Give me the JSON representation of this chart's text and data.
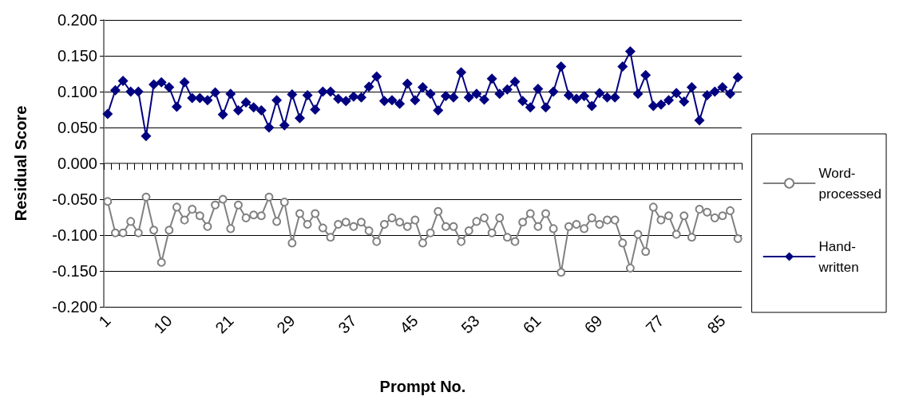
{
  "chart_data": {
    "type": "line",
    "xlabel": "Prompt No.",
    "ylabel": "Residual Score",
    "categories": [
      "1",
      null,
      null,
      null,
      null,
      null,
      null,
      null,
      "10",
      null,
      null,
      null,
      null,
      null,
      null,
      null,
      "21",
      null,
      null,
      null,
      null,
      null,
      null,
      null,
      "29",
      null,
      null,
      null,
      null,
      null,
      null,
      null,
      "37",
      null,
      null,
      null,
      null,
      null,
      null,
      null,
      "45",
      null,
      null,
      null,
      null,
      null,
      null,
      null,
      "53",
      null,
      null,
      null,
      null,
      null,
      null,
      null,
      "61",
      null,
      null,
      null,
      null,
      null,
      null,
      null,
      "69",
      null,
      null,
      null,
      null,
      null,
      null,
      null,
      "77",
      null,
      null,
      null,
      null,
      null,
      null,
      null,
      "85",
      null,
      null
    ],
    "series": [
      {
        "name": "Word-processed",
        "color": "#808080",
        "marker": "circle",
        "values": [
          -0.053,
          -0.097,
          -0.097,
          -0.081,
          -0.097,
          -0.047,
          -0.093,
          -0.138,
          -0.093,
          -0.061,
          -0.079,
          -0.064,
          -0.073,
          -0.088,
          -0.058,
          -0.05,
          -0.091,
          -0.058,
          -0.076,
          -0.072,
          -0.073,
          -0.047,
          -0.081,
          -0.054,
          -0.111,
          -0.07,
          -0.085,
          -0.07,
          -0.09,
          -0.103,
          -0.085,
          -0.082,
          -0.088,
          -0.082,
          -0.094,
          -0.109,
          -0.085,
          -0.076,
          -0.082,
          -0.088,
          -0.079,
          -0.111,
          -0.097,
          -0.067,
          -0.088,
          -0.088,
          -0.109,
          -0.094,
          -0.081,
          -0.076,
          -0.097,
          -0.076,
          -0.103,
          -0.109,
          -0.082,
          -0.07,
          -0.088,
          -0.07,
          -0.091,
          -0.152,
          -0.088,
          -0.085,
          -0.091,
          -0.076,
          -0.085,
          -0.079,
          -0.079,
          -0.111,
          -0.146,
          -0.099,
          -0.123,
          -0.061,
          -0.079,
          -0.073,
          -0.099,
          -0.073,
          -0.103,
          -0.064,
          -0.068,
          -0.076,
          -0.073,
          -0.066,
          -0.105
        ]
      },
      {
        "name": "Hand-written",
        "color": "#000080",
        "marker": "diamond",
        "values": [
          0.069,
          0.102,
          0.115,
          0.1,
          0.1,
          0.038,
          0.11,
          0.113,
          0.106,
          0.079,
          0.113,
          0.091,
          0.091,
          0.088,
          0.099,
          0.068,
          0.097,
          0.074,
          0.085,
          0.078,
          0.074,
          0.05,
          0.088,
          0.053,
          0.096,
          0.063,
          0.095,
          0.075,
          0.1,
          0.1,
          0.09,
          0.087,
          0.093,
          0.092,
          0.107,
          0.121,
          0.087,
          0.088,
          0.083,
          0.111,
          0.088,
          0.106,
          0.097,
          0.074,
          0.094,
          0.092,
          0.127,
          0.092,
          0.097,
          0.089,
          0.118,
          0.097,
          0.103,
          0.114,
          0.087,
          0.078,
          0.104,
          0.078,
          0.1,
          0.135,
          0.095,
          0.09,
          0.094,
          0.08,
          0.098,
          0.092,
          0.092,
          0.135,
          0.156,
          0.097,
          0.123,
          0.08,
          0.082,
          0.088,
          0.098,
          0.086,
          0.106,
          0.06,
          0.095,
          0.1,
          0.106,
          0.097,
          0.12
        ]
      }
    ],
    "ylim": [
      -0.2,
      0.2
    ],
    "yticks": [
      {
        "value": -0.2,
        "label": "-0.200"
      },
      {
        "value": -0.15,
        "label": "-0.150"
      },
      {
        "value": -0.1,
        "label": "-0.100"
      },
      {
        "value": -0.05,
        "label": "-0.050"
      },
      {
        "value": 0,
        "label": "0.000"
      },
      {
        "value": 0.05,
        "label": "0.050"
      },
      {
        "value": 0.1,
        "label": "0.100"
      },
      {
        "value": 0.15,
        "label": "0.150"
      },
      {
        "value": 0.2,
        "label": "0.200"
      }
    ],
    "grid": "y",
    "legend": "right"
  }
}
